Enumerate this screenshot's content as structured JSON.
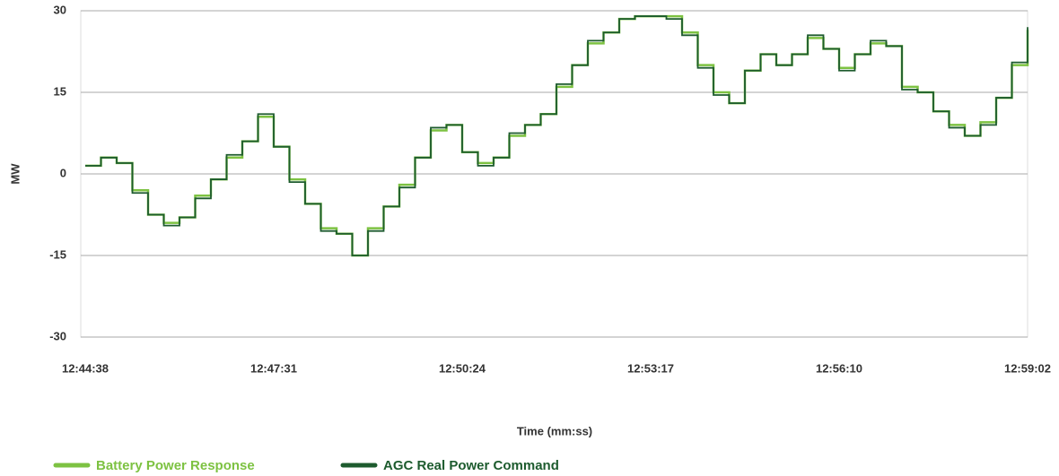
{
  "chart_data": {
    "type": "line",
    "categories": [
      "12:44:38",
      null,
      null,
      null,
      null,
      null,
      null,
      null,
      null,
      null,
      null,
      null,
      "12:47:31",
      null,
      null,
      null,
      null,
      null,
      null,
      null,
      null,
      null,
      null,
      null,
      "12:50:24",
      null,
      null,
      null,
      null,
      null,
      null,
      null,
      null,
      null,
      null,
      null,
      "12:53:17",
      null,
      null,
      null,
      null,
      null,
      null,
      null,
      null,
      null,
      null,
      null,
      "12:56:10",
      null,
      null,
      null,
      null,
      null,
      null,
      null,
      null,
      null,
      null,
      null,
      "12:59:02"
    ],
    "series": [
      {
        "name": "Battery Power Response",
        "color": "#7dc242",
        "values": [
          1.5,
          3,
          2,
          -3,
          -7.5,
          -9,
          -8,
          -4,
          -1,
          3,
          6,
          10.5,
          5,
          -1,
          -5.5,
          -10,
          -11,
          -15,
          -10,
          -6,
          -2,
          3,
          8,
          9,
          4,
          2,
          3,
          7,
          9,
          11,
          16,
          20,
          24,
          26,
          28.5,
          29,
          29,
          29,
          26,
          20,
          15,
          13,
          19,
          22,
          20,
          22,
          25,
          23,
          19.5,
          22,
          24,
          23.5,
          16,
          15,
          11.5,
          9,
          7,
          9.5,
          14,
          20,
          26.5
        ]
      },
      {
        "name": "AGC Real Power Command",
        "color": "#1d5b2e",
        "values": [
          1.5,
          3,
          2,
          -3.5,
          -7.5,
          -9.5,
          -8,
          -4.5,
          -1,
          3.5,
          6,
          11,
          5,
          -1.5,
          -5.5,
          -10.5,
          -11,
          -15,
          -10.5,
          -6,
          -2.5,
          3,
          8.5,
          9,
          4,
          1.5,
          3,
          7.5,
          9,
          11,
          16.5,
          20,
          24.5,
          26,
          28.5,
          29,
          29,
          28.5,
          25.5,
          19.5,
          14.5,
          13,
          19,
          22,
          20,
          22,
          25.5,
          23,
          19,
          22,
          24.5,
          23.5,
          15.5,
          15,
          11.5,
          8.5,
          7,
          9,
          14,
          20.5,
          27
        ]
      }
    ],
    "ylim": [
      -30,
      30
    ],
    "yticks": [
      -30,
      -15,
      0,
      15,
      30
    ],
    "grid": true,
    "ylabel": "MW",
    "xlabel": "Time (mm:ss)",
    "legend": "bottom-left"
  }
}
